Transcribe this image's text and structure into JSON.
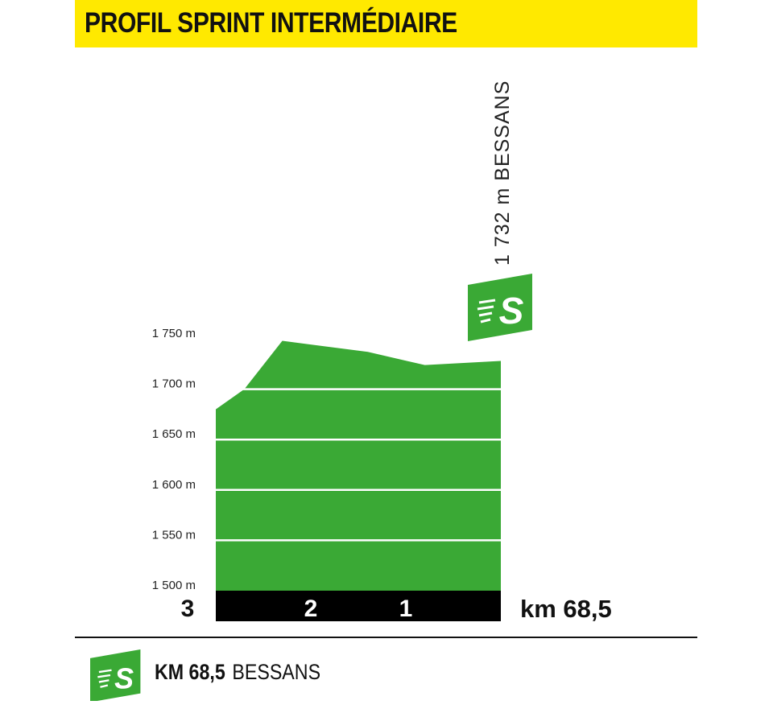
{
  "header": {
    "title": "PROFIL SPRINT INTERMÉDIAIRE"
  },
  "summit_label": "1 732 m BESSANS",
  "km_label": "km 68,5",
  "footer": {
    "km": "KM 68,5",
    "place": "BESSANS"
  },
  "colors": {
    "accent": "#ffe900",
    "profile": "#3aa935",
    "bar": "#000000"
  },
  "icons": {
    "sprint": "sprint-s-icon"
  },
  "chart_data": {
    "type": "area",
    "title": "PROFIL SPRINT INTERMÉDIAIRE",
    "y_unit": "m",
    "ylim": [
      1500,
      1750
    ],
    "yticks": [
      1500,
      1550,
      1600,
      1650,
      1700,
      1750
    ],
    "ytick_labels": [
      "1 500 m",
      "1 550 m",
      "1 600 m",
      "1 650 m",
      "1 700 m",
      "1 750 m"
    ],
    "x_remaining_km": [
      3.0,
      2.7,
      2.3,
      1.4,
      0.8,
      0.0
    ],
    "elevation_m": [
      1680,
      1700,
      1748,
      1737,
      1724,
      1728
    ],
    "km_markers": [
      "3",
      "2",
      "1"
    ],
    "km_marker_values": [
      3,
      2,
      1
    ],
    "sprint": {
      "km": "68,5",
      "altitude_m": 1732,
      "place": "BESSANS"
    },
    "grid": true
  }
}
